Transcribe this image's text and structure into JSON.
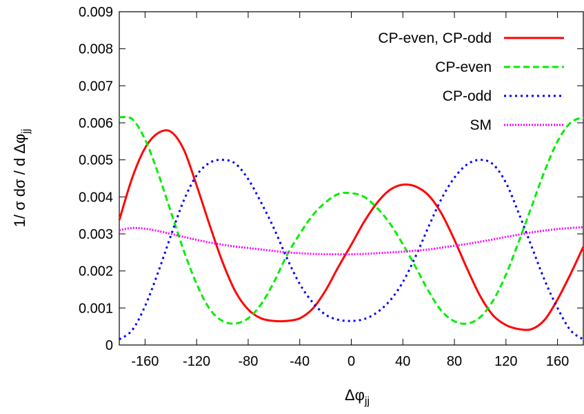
{
  "chart_data": {
    "type": "line",
    "title": "",
    "xlabel": {
      "main": "Δφ",
      "sub": "jj"
    },
    "ylabel": {
      "main": "1/ σ dσ / d Δφ",
      "sub": "jj"
    },
    "xlim": [
      -180,
      180
    ],
    "ylim": [
      0,
      0.009
    ],
    "xticks": [
      -160,
      -120,
      -80,
      -40,
      0,
      40,
      80,
      120,
      160
    ],
    "yticks": [
      0,
      0.001,
      0.002,
      0.003,
      0.004,
      0.005,
      0.006,
      0.007,
      0.008,
      0.009
    ],
    "ytick_labels": [
      "0",
      "0.001",
      "0.002",
      "0.003",
      "0.004",
      "0.005",
      "0.006",
      "0.007",
      "0.008",
      "0.009"
    ],
    "grid": false,
    "legend_position": "top-right",
    "x": [
      -180,
      -170,
      -160,
      -150,
      -140,
      -130,
      -120,
      -110,
      -100,
      -90,
      -80,
      -70,
      -60,
      -50,
      -40,
      -30,
      -20,
      -10,
      0,
      10,
      20,
      30,
      40,
      50,
      60,
      70,
      80,
      90,
      100,
      110,
      120,
      130,
      140,
      150,
      160,
      170,
      180
    ],
    "series": [
      {
        "name": "CP-even, CP-odd",
        "color": "#ff0000",
        "dash": "solid",
        "values": [
          0.00337,
          0.00451,
          0.00532,
          0.00572,
          0.00576,
          0.00528,
          0.00431,
          0.00325,
          0.00225,
          0.00145,
          0.00096,
          0.00072,
          0.00065,
          0.00065,
          0.00072,
          0.00098,
          0.00147,
          0.00211,
          0.00271,
          0.00333,
          0.00384,
          0.00419,
          0.00433,
          0.00428,
          0.00404,
          0.00355,
          0.00284,
          0.00205,
          0.00132,
          0.0008,
          0.00054,
          0.00043,
          0.00043,
          0.00068,
          0.00123,
          0.00191,
          0.00265
        ]
      },
      {
        "name": "CP-even",
        "color": "#00ee00",
        "dash": "dashed",
        "values": [
          0.00615,
          0.0061,
          0.00555,
          0.00465,
          0.0036,
          0.00255,
          0.00165,
          0.00098,
          0.00065,
          0.00058,
          0.00072,
          0.0011,
          0.0017,
          0.00242,
          0.003,
          0.0035,
          0.00385,
          0.00408,
          0.0041,
          0.004,
          0.0037,
          0.00328,
          0.00272,
          0.0021,
          0.00145,
          0.00092,
          0.00064,
          0.00058,
          0.00075,
          0.0012,
          0.0019,
          0.0028,
          0.00375,
          0.0047,
          0.0055,
          0.006,
          0.00615
        ]
      },
      {
        "name": "CP-odd",
        "color": "#0000ff",
        "dash": "dotted",
        "values": [
          0.00015,
          0.0004,
          0.00105,
          0.00195,
          0.00295,
          0.0039,
          0.00458,
          0.00492,
          0.005,
          0.0049,
          0.00448,
          0.00385,
          0.00315,
          0.00235,
          0.00165,
          0.00115,
          0.00082,
          0.00068,
          0.00065,
          0.0007,
          0.00088,
          0.0012,
          0.0017,
          0.0024,
          0.0032,
          0.00395,
          0.00452,
          0.00488,
          0.005,
          0.00488,
          0.00438,
          0.00355,
          0.00265,
          0.00175,
          0.001,
          0.0004,
          0.00015
        ]
      },
      {
        "name": "SM",
        "color": "#ff00ff",
        "dash": "dense-dotted",
        "values": [
          0.0031,
          0.00316,
          0.00314,
          0.00308,
          0.003,
          0.00292,
          0.00284,
          0.00277,
          0.00271,
          0.00266,
          0.00262,
          0.00258,
          0.00254,
          0.0025,
          0.00248,
          0.00246,
          0.00245,
          0.00245,
          0.00245,
          0.00246,
          0.00248,
          0.0025,
          0.00252,
          0.00255,
          0.00258,
          0.00263,
          0.00268,
          0.00273,
          0.00279,
          0.00285,
          0.00292,
          0.00298,
          0.00304,
          0.00309,
          0.00313,
          0.00316,
          0.00318
        ]
      }
    ]
  }
}
